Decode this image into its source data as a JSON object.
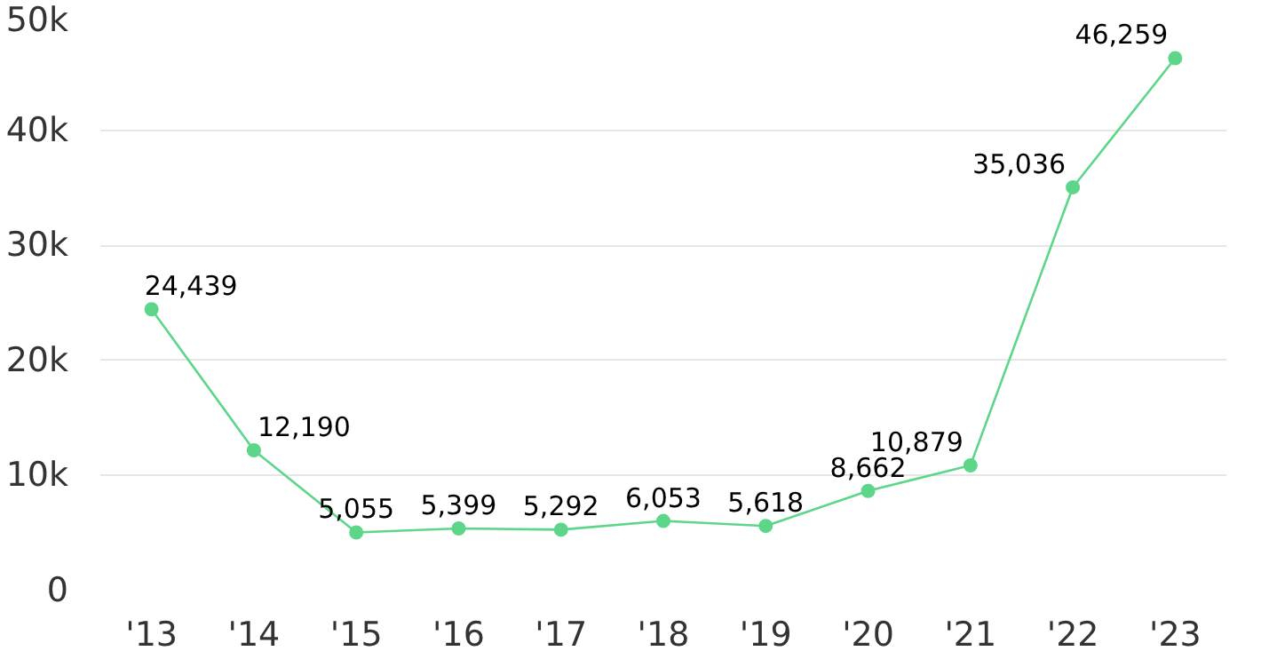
{
  "chart_data": {
    "type": "line",
    "categories": [
      "'13",
      "'14",
      "'15",
      "'16",
      "'17",
      "'18",
      "'19",
      "'20",
      "'21",
      "'22",
      "'23"
    ],
    "values": [
      24439,
      12190,
      5055,
      5399,
      5292,
      6053,
      5618,
      8662,
      10879,
      35036,
      46259
    ],
    "value_labels": [
      "24,439",
      "12,190",
      "5,055",
      "5,399",
      "5,292",
      "6,053",
      "5,618",
      "8,662",
      "10,879",
      "35,036",
      "46,259"
    ],
    "color": "#5dd68a",
    "ylim": [
      0,
      50000
    ],
    "yticks": [
      {
        "value": 0,
        "label": "0"
      },
      {
        "value": 10000,
        "label": "10k"
      },
      {
        "value": 20000,
        "label": "20k"
      },
      {
        "value": 30000,
        "label": "30k"
      },
      {
        "value": 40000,
        "label": "40k"
      },
      {
        "value": 50000,
        "label": "50k"
      }
    ],
    "grid": "y",
    "marker": "circle",
    "line_style": "solid"
  }
}
